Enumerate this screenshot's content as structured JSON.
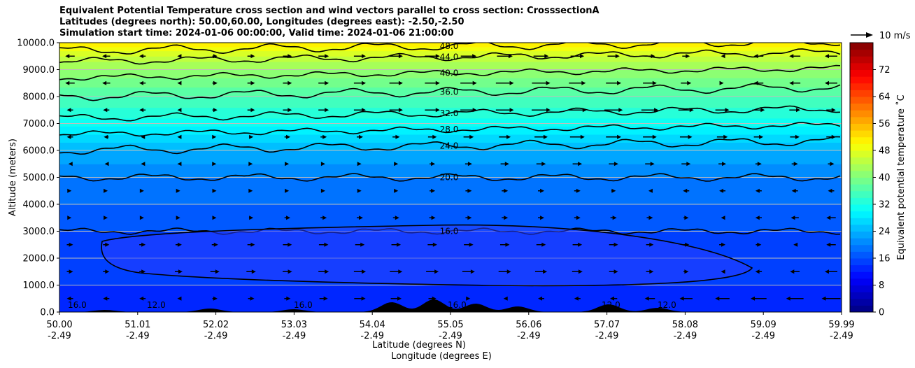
{
  "chart_data": {
    "type": "contour",
    "title": [
      "Equivalent Potential Temperature cross section and wind vectors parallel to cross section: CrosssectionA",
      "Latitudes (degrees north): 50.00,60.00, Longitudes (degrees east): -2.50,-2.50",
      "Simulation start time: 2024-01-06 00:00:00, Valid time: 2024-01-06 21:00:00"
    ],
    "ylabel": "Altitude (meters)",
    "xlabel": "Latitude (degrees N)",
    "xlabel2": "Longitude (degrees E)",
    "ylim": [
      0,
      10000
    ],
    "y_ticks": [
      "0.0",
      "1000.0",
      "2000.0",
      "3000.0",
      "4000.0",
      "5000.0",
      "6000.0",
      "7000.0",
      "8000.0",
      "9000.0",
      "10000.0"
    ],
    "x_ticks": [
      {
        "lat": "50.00",
        "lon": "-2.49"
      },
      {
        "lat": "51.01",
        "lon": "-2.49"
      },
      {
        "lat": "52.02",
        "lon": "-2.49"
      },
      {
        "lat": "53.03",
        "lon": "-2.49"
      },
      {
        "lat": "54.04",
        "lon": "-2.49"
      },
      {
        "lat": "55.05",
        "lon": "-2.49"
      },
      {
        "lat": "56.06",
        "lon": "-2.49"
      },
      {
        "lat": "57.07",
        "lon": "-2.49"
      },
      {
        "lat": "58.08",
        "lon": "-2.49"
      },
      {
        "lat": "59.09",
        "lon": "-2.49"
      },
      {
        "lat": "59.99",
        "lon": "-2.49"
      }
    ],
    "colorbar": {
      "label": "Equivalent potential temperature ˚C",
      "range": [
        0,
        80
      ],
      "ticks": [
        "0",
        "8",
        "16",
        "24",
        "32",
        "40",
        "48",
        "56",
        "64",
        "72"
      ]
    },
    "contour_levels": [
      {
        "value": 16,
        "label": "16.0"
      },
      {
        "value": 20,
        "label": "20.0"
      },
      {
        "value": 24,
        "label": "24.0"
      },
      {
        "value": 28,
        "label": "28.0"
      },
      {
        "value": 32,
        "label": "32.0"
      },
      {
        "value": 36,
        "label": "36.0"
      },
      {
        "value": 40,
        "label": "40.0"
      },
      {
        "value": 44,
        "label": "44.0"
      },
      {
        "value": 48,
        "label": "48.0"
      }
    ],
    "bottom_labels": [
      "16.0",
      "12.0",
      "16.0",
      "16.0",
      "12.0",
      "12.0"
    ],
    "quiver_key": "10 m/s",
    "theta_profile": [
      {
        "alt": 0,
        "theta": 12
      },
      {
        "alt": 1000,
        "theta": 14
      },
      {
        "alt": 2000,
        "theta": 14
      },
      {
        "alt": 3000,
        "theta": 16
      },
      {
        "alt": 4000,
        "theta": 18
      },
      {
        "alt": 5000,
        "theta": 20
      },
      {
        "alt": 5500,
        "theta": 22
      },
      {
        "alt": 6000,
        "theta": 24
      },
      {
        "alt": 6600,
        "theta": 28
      },
      {
        "alt": 7200,
        "theta": 32
      },
      {
        "alt": 8000,
        "theta": 36
      },
      {
        "alt": 8700,
        "theta": 40
      },
      {
        "alt": 9300,
        "theta": 44
      },
      {
        "alt": 9700,
        "theta": 48
      },
      {
        "alt": 10000,
        "theta": 52
      }
    ],
    "wind_rows": [
      {
        "alt": 500,
        "speed": [
          -2,
          -2,
          2,
          2,
          4,
          2,
          -2,
          -2,
          -4,
          -5,
          -6
        ]
      },
      {
        "alt": 1500,
        "speed": [
          2,
          2,
          3,
          3,
          4,
          4,
          4,
          3,
          2,
          -2,
          -4
        ]
      },
      {
        "alt": 2500,
        "speed": [
          2,
          2,
          2,
          3,
          3,
          3,
          3,
          3,
          2,
          2,
          -3
        ]
      },
      {
        "alt": 3500,
        "speed": [
          1,
          1,
          1,
          2,
          2,
          2,
          2,
          2,
          2,
          -2,
          -3
        ]
      },
      {
        "alt": 4500,
        "speed": [
          1,
          1,
          1,
          1,
          1,
          2,
          2,
          2,
          -2,
          -2,
          -2
        ]
      },
      {
        "alt": 5500,
        "speed": [
          -1,
          -1,
          1,
          1,
          1,
          2,
          3,
          3,
          3,
          2,
          2
        ]
      },
      {
        "alt": 6500,
        "speed": [
          -2,
          -1,
          1,
          2,
          2,
          3,
          4,
          5,
          4,
          3,
          3
        ]
      },
      {
        "alt": 7500,
        "speed": [
          -2,
          -2,
          2,
          3,
          4,
          5,
          6,
          6,
          5,
          4,
          3
        ]
      },
      {
        "alt": 8500,
        "speed": [
          -3,
          -2,
          2,
          3,
          4,
          5,
          6,
          5,
          4,
          -3,
          -4
        ]
      },
      {
        "alt": 9500,
        "speed": [
          -3,
          -2,
          2,
          3,
          4,
          5,
          5,
          4,
          3,
          -3,
          -4
        ]
      }
    ]
  }
}
